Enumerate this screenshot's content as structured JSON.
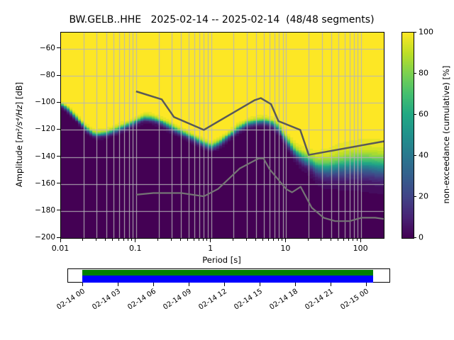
{
  "figure": {
    "title": "BW.GELB..HHE   2025-02-14 -- 2025-02-14  (48/48 segments)"
  },
  "chart_data": {
    "type": "heatmap",
    "title": "BW.GELB..HHE   2025-02-14 -- 2025-02-14  (48/48 segments)",
    "xlabel": "Period [s]",
    "ylabel_prefix": "Amplitude [",
    "ylabel_math": "m²/s⁴/Hz",
    "ylabel_suffix": "] [dB]",
    "x_scale": "log",
    "xlim": [
      0.01,
      200
    ],
    "ylim": [
      -200,
      -48
    ],
    "grid": true,
    "grid_color": "#b6b6b9",
    "x_major_ticks": [
      {
        "value": 0.01,
        "label": "0.01"
      },
      {
        "value": 0.1,
        "label": "0.1"
      },
      {
        "value": 1,
        "label": "1"
      },
      {
        "value": 10,
        "label": "10"
      },
      {
        "value": 100,
        "label": "100"
      }
    ],
    "y_ticks": [
      {
        "value": -60,
        "label": "−60"
      },
      {
        "value": -80,
        "label": "−80"
      },
      {
        "value": -100,
        "label": "−100"
      },
      {
        "value": -120,
        "label": "−120"
      },
      {
        "value": -140,
        "label": "−140"
      },
      {
        "value": -160,
        "label": "−160"
      },
      {
        "value": -180,
        "label": "−180"
      },
      {
        "value": -200,
        "label": "−200"
      }
    ],
    "colorbar": {
      "label": "non-exceedance (cumulative) [%]",
      "colormap": "viridis",
      "ticks": [
        {
          "value": 0,
          "label": "0"
        },
        {
          "value": 20,
          "label": "20"
        },
        {
          "value": 40,
          "label": "40"
        },
        {
          "value": 60,
          "label": "60"
        },
        {
          "value": 80,
          "label": "80"
        },
        {
          "value": 100,
          "label": "100"
        }
      ]
    },
    "viridis_stops": [
      "#440154",
      "#482475",
      "#414487",
      "#355f8d",
      "#2a788e",
      "#21918c",
      "#22a884",
      "#44bf70",
      "#7ad151",
      "#bddf26",
      "#fde725"
    ],
    "psd_mode_curve": [
      [
        0.01,
        -101
      ],
      [
        0.0125,
        -105
      ],
      [
        0.016,
        -111
      ],
      [
        0.021,
        -118.5
      ],
      [
        0.028,
        -123.5
      ],
      [
        0.04,
        -122.5
      ],
      [
        0.06,
        -119
      ],
      [
        0.09,
        -115
      ],
      [
        0.125,
        -111
      ],
      [
        0.16,
        -111.5
      ],
      [
        0.2,
        -113.5
      ],
      [
        0.3,
        -118.5
      ],
      [
        0.4,
        -122
      ],
      [
        0.55,
        -125.5
      ],
      [
        0.75,
        -129.5
      ],
      [
        1.0,
        -132.5
      ],
      [
        1.3,
        -129.5
      ],
      [
        1.7,
        -124.5
      ],
      [
        2.2,
        -119.5
      ],
      [
        3.0,
        -115.5
      ],
      [
        4.0,
        -114
      ],
      [
        5.0,
        -113.5
      ],
      [
        6.0,
        -114.5
      ],
      [
        7.0,
        -116.5
      ],
      [
        8.0,
        -119.5
      ],
      [
        9.5,
        -126
      ],
      [
        11.0,
        -131
      ],
      [
        13.0,
        -136.5
      ],
      [
        16.0,
        -140.5
      ],
      [
        20.0,
        -143.5
      ],
      [
        26.0,
        -147.5
      ],
      [
        35.0,
        -148.5
      ],
      [
        50.0,
        -147
      ],
      [
        80.0,
        -145.8
      ],
      [
        120.0,
        -146
      ],
      [
        200.0,
        -147.5
      ]
    ],
    "psd_spread_curve": [
      [
        0.01,
        1.5
      ],
      [
        0.05,
        1.8
      ],
      [
        0.5,
        2.0
      ],
      [
        3.0,
        2.0
      ],
      [
        6.0,
        2.2
      ],
      [
        9.0,
        2.6
      ],
      [
        12.0,
        3.2
      ],
      [
        16.0,
        3.8
      ],
      [
        20.0,
        4.2
      ],
      [
        30.0,
        6.0
      ],
      [
        60.0,
        7.5
      ],
      [
        120.0,
        8.2
      ],
      [
        200.0,
        8.5
      ]
    ],
    "noise_models": {
      "nhnm_color": "#595959",
      "nlnm_color": "#757575",
      "nhnm": [
        [
          0.1,
          -91.5
        ],
        [
          0.22,
          -97.4
        ],
        [
          0.32,
          -110.5
        ],
        [
          0.8,
          -120.0
        ],
        [
          3.8,
          -98.0
        ],
        [
          4.6,
          -96.5
        ],
        [
          6.3,
          -101.0
        ],
        [
          7.9,
          -113.5
        ],
        [
          15.4,
          -120.0
        ],
        [
          20.0,
          -138.5
        ],
        [
          354.8,
          -126.0
        ]
      ],
      "nlnm": [
        [
          0.1,
          -168.0
        ],
        [
          0.17,
          -166.7
        ],
        [
          0.4,
          -166.7
        ],
        [
          0.8,
          -169.2
        ],
        [
          1.24,
          -163.7
        ],
        [
          2.4,
          -148.6
        ],
        [
          4.3,
          -141.1
        ],
        [
          5.0,
          -141.1
        ],
        [
          6.0,
          -149.0
        ],
        [
          10.0,
          -163.8
        ],
        [
          12.0,
          -166.2
        ],
        [
          15.6,
          -162.1
        ],
        [
          21.9,
          -177.5
        ],
        [
          31.6,
          -185.0
        ],
        [
          45.0,
          -187.5
        ],
        [
          70.0,
          -187.5
        ],
        [
          101.0,
          -185.0
        ],
        [
          154.0,
          -185.0
        ],
        [
          328.0,
          -187.5
        ]
      ]
    },
    "timeline": {
      "labels": [
        "02-14 00",
        "02-14 03",
        "02-14 06",
        "02-14 09",
        "02-14 12",
        "02-14 15",
        "02-14 18",
        "02-14 21",
        "02-15 00"
      ],
      "coverage_top_color": "#008000",
      "coverage_bottom_color": "#0000ff"
    }
  }
}
